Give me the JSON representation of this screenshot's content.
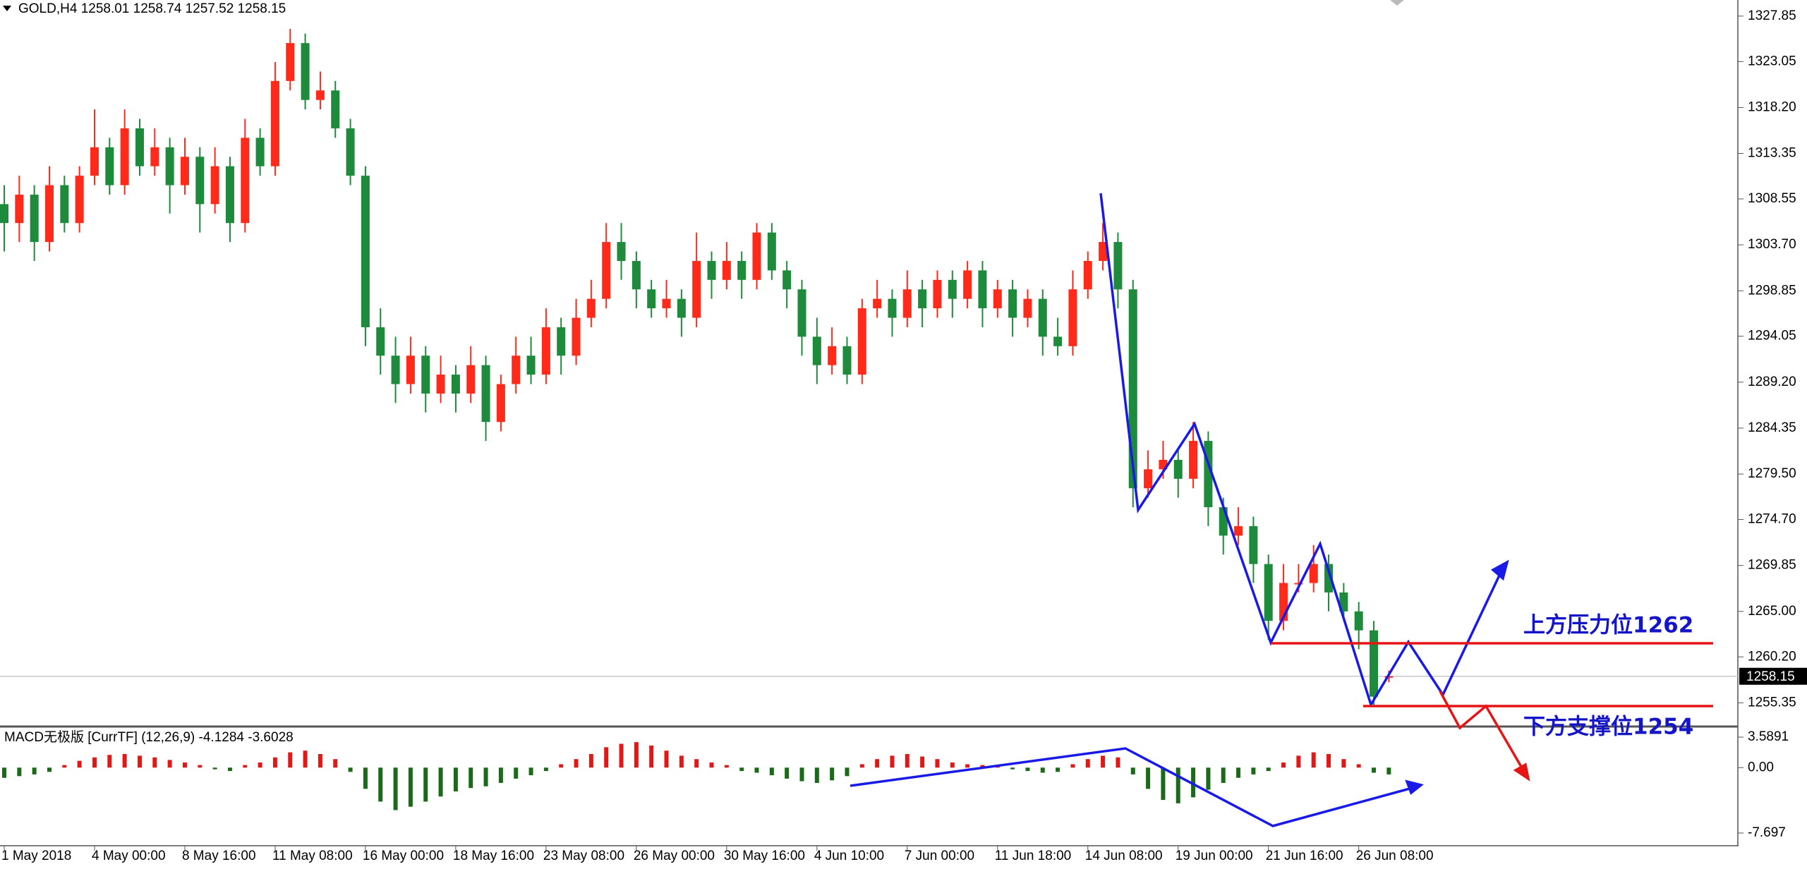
{
  "chart_data": [
    {
      "type": "candlestick",
      "title": "GOLD,H4  1258.01 1258.74 1257.52 1258.15",
      "up_color": "#ff2a1a",
      "down_color": "#1e8a3c",
      "current_price": 1258.15,
      "annotations": [
        "上方压力位1262",
        "下方支撑位1254"
      ],
      "categories": [
        "1 May 2018",
        null,
        null,
        null,
        null,
        null,
        "4 May 00:00",
        null,
        null,
        null,
        null,
        null,
        "8 May 16:00",
        null,
        null,
        null,
        null,
        null,
        "11 May 08:00",
        null,
        null,
        null,
        null,
        null,
        "16 May 00:00",
        null,
        null,
        null,
        null,
        null,
        "18 May 16:00",
        null,
        null,
        null,
        null,
        null,
        "23 May 08:00",
        null,
        null,
        null,
        null,
        null,
        "26 May 00:00",
        null,
        null,
        null,
        null,
        null,
        "30 May 16:00",
        null,
        null,
        null,
        null,
        null,
        "4 Jun 10:00",
        null,
        null,
        null,
        null,
        null,
        "7 Jun 00:00",
        null,
        null,
        null,
        null,
        null,
        "11 Jun 18:00",
        null,
        null,
        null,
        null,
        null,
        "14 Jun 08:00",
        null,
        null,
        null,
        null,
        null,
        "19 Jun 00:00",
        null,
        null,
        null,
        null,
        null,
        "21 Jun 16:00",
        null,
        null,
        null,
        null,
        null,
        "26 Jun 08:00",
        null,
        null
      ],
      "open": [
        1308,
        1306,
        1309,
        1304,
        1310,
        1306,
        1311,
        1314,
        1310,
        1316,
        1312,
        1314,
        1310,
        1313,
        1308,
        1312,
        1306,
        1315,
        1312,
        1321,
        1325,
        1319,
        1320,
        1316,
        1311,
        1295,
        1292,
        1289,
        1292,
        1288,
        1290,
        1288,
        1291,
        1285,
        1289,
        1292,
        1290,
        1295,
        1292,
        1296,
        1298,
        1304,
        1302,
        1299,
        1297,
        1298,
        1296,
        1302,
        1300,
        1302,
        1300,
        1305,
        1301,
        1299,
        1294,
        1291,
        1293,
        1290,
        1297,
        1298,
        1296,
        1299,
        1297,
        1300,
        1298,
        1301,
        1297,
        1299,
        1296,
        1298,
        1294,
        1293,
        1299,
        1302,
        1304,
        1299,
        1278,
        1280,
        1281,
        1279,
        1283,
        1276,
        1273,
        1274,
        1270,
        1264,
        1268,
        1268,
        1270,
        1267,
        1265,
        1263,
        1258.01
      ],
      "high": [
        1310,
        1311,
        1310,
        1312,
        1311,
        1312,
        1318,
        1315,
        1318,
        1317,
        1316,
        1315,
        1315,
        1314,
        1314,
        1313,
        1317,
        1316,
        1323,
        1326.5,
        1326,
        1322,
        1321,
        1317,
        1312,
        1297,
        1294,
        1294,
        1293,
        1292,
        1291,
        1293,
        1292,
        1290,
        1294,
        1294,
        1297,
        1296,
        1298,
        1300,
        1306,
        1306,
        1303,
        1300,
        1300,
        1299,
        1305,
        1303,
        1304,
        1303,
        1306,
        1306,
        1302,
        1300,
        1296,
        1295,
        1294,
        1298,
        1300,
        1299,
        1301,
        1300,
        1301,
        1301,
        1302,
        1302,
        1300,
        1300,
        1299,
        1299,
        1296,
        1301,
        1303,
        1306,
        1305,
        1300,
        1282,
        1283,
        1282,
        1285,
        1284,
        1277,
        1276,
        1275,
        1271,
        1270,
        1270,
        1272,
        1271,
        1268,
        1266,
        1264,
        1258.74
      ],
      "low": [
        1303,
        1304,
        1302,
        1303,
        1305,
        1305,
        1310,
        1309,
        1309,
        1311,
        1311,
        1307,
        1309,
        1305,
        1307,
        1304,
        1305,
        1311,
        1311,
        1320,
        1318,
        1318,
        1315,
        1310,
        1293,
        1290,
        1287,
        1288,
        1286,
        1287,
        1286,
        1287,
        1283,
        1284,
        1288,
        1289,
        1289,
        1290,
        1291,
        1295,
        1297,
        1300,
        1297,
        1296,
        1296,
        1294,
        1295,
        1298,
        1299,
        1298,
        1299,
        1300,
        1297,
        1292,
        1289,
        1290,
        1289,
        1289,
        1296,
        1294,
        1295,
        1295,
        1296,
        1296,
        1297,
        1295,
        1296,
        1294,
        1295,
        1292,
        1292,
        1292,
        1298,
        1301,
        1297,
        1276,
        1277,
        1279,
        1277,
        1278,
        1274,
        1271,
        1272,
        1268,
        1262,
        1263,
        1267,
        1267,
        1265,
        1264,
        1261,
        1255,
        1257.52
      ],
      "close": [
        1306,
        1309,
        1304,
        1310,
        1306,
        1311,
        1314,
        1310,
        1316,
        1312,
        1314,
        1310,
        1313,
        1308,
        1312,
        1306,
        1315,
        1312,
        1321,
        1325,
        1319,
        1320,
        1316,
        1311,
        1295,
        1292,
        1289,
        1292,
        1288,
        1290,
        1288,
        1291,
        1285,
        1289,
        1292,
        1290,
        1295,
        1292,
        1296,
        1298,
        1304,
        1302,
        1299,
        1297,
        1298,
        1296,
        1302,
        1300,
        1302,
        1300,
        1305,
        1301,
        1299,
        1294,
        1291,
        1293,
        1290,
        1297,
        1298,
        1296,
        1299,
        1297,
        1300,
        1298,
        1301,
        1297,
        1299,
        1296,
        1298,
        1294,
        1293,
        1299,
        1302,
        1304,
        1299,
        1278,
        1280,
        1281,
        1279,
        1283,
        1276,
        1273,
        1274,
        1270,
        1264,
        1268,
        1268,
        1270,
        1267,
        1265,
        1263,
        1256,
        1258.15
      ],
      "ylim": [
        1252.92,
        1329.55
      ],
      "yticks": [
        1327.85,
        1323.05,
        {
          "value": 1318.2,
          "label": "1318.20"
        },
        1313.35,
        1308.55,
        {
          "value": 1303.7,
          "label": "1303.70"
        },
        1298.85,
        1294.05,
        {
          "value": 1289.2,
          "label": "1289.20"
        },
        1284.35,
        {
          "value": 1279.5,
          "label": "1279.50"
        },
        {
          "value": 1274.7,
          "label": "1274.70"
        },
        1269.85,
        {
          "value": 1265,
          "label": "1265.00"
        },
        {
          "value": 1260.2,
          "label": "1260.20"
        },
        1255.35
      ]
    },
    {
      "type": "bar",
      "title": "MACD无极版 [CurrTF] (12,26,9) -4.1284 -3.6028",
      "positive_color": "#e01818",
      "negative_color": "#1a6a1a",
      "values": [
        -1.2,
        -1.0,
        -0.8,
        -0.5,
        0.3,
        0.8,
        1.2,
        1.5,
        1.6,
        1.4,
        1.2,
        0.9,
        0.6,
        0.3,
        -0.2,
        -0.4,
        0.3,
        0.6,
        1.2,
        1.8,
        2.0,
        1.6,
        1.0,
        -0.5,
        -2.5,
        -4.0,
        -5.0,
        -4.6,
        -4.0,
        -3.4,
        -2.8,
        -2.4,
        -2.2,
        -1.8,
        -1.3,
        -0.9,
        -0.4,
        0.4,
        1.0,
        1.6,
        2.4,
        2.8,
        3.0,
        2.6,
        2.0,
        1.4,
        1.0,
        0.6,
        0.3,
        -0.4,
        -0.6,
        -0.9,
        -1.3,
        -1.6,
        -1.8,
        -1.5,
        -1.0,
        0.4,
        1.0,
        1.4,
        1.6,
        1.3,
        1.0,
        0.6,
        0.4,
        0.3,
        0.2,
        -0.2,
        -0.4,
        -0.6,
        -0.5,
        0.4,
        1.0,
        1.4,
        1.2,
        -0.8,
        -2.5,
        -3.8,
        -4.2,
        -3.5,
        -2.6,
        -1.8,
        -1.2,
        -0.8,
        -0.4,
        0.6,
        1.4,
        1.8,
        1.6,
        1.0,
        0.4,
        -0.6,
        -0.8
      ],
      "ylim": [
        -8.86,
        4.67
      ],
      "yticks": [
        3.5891,
        {
          "value": 0,
          "label": "0.00"
        },
        -7.697
      ]
    }
  ]
}
